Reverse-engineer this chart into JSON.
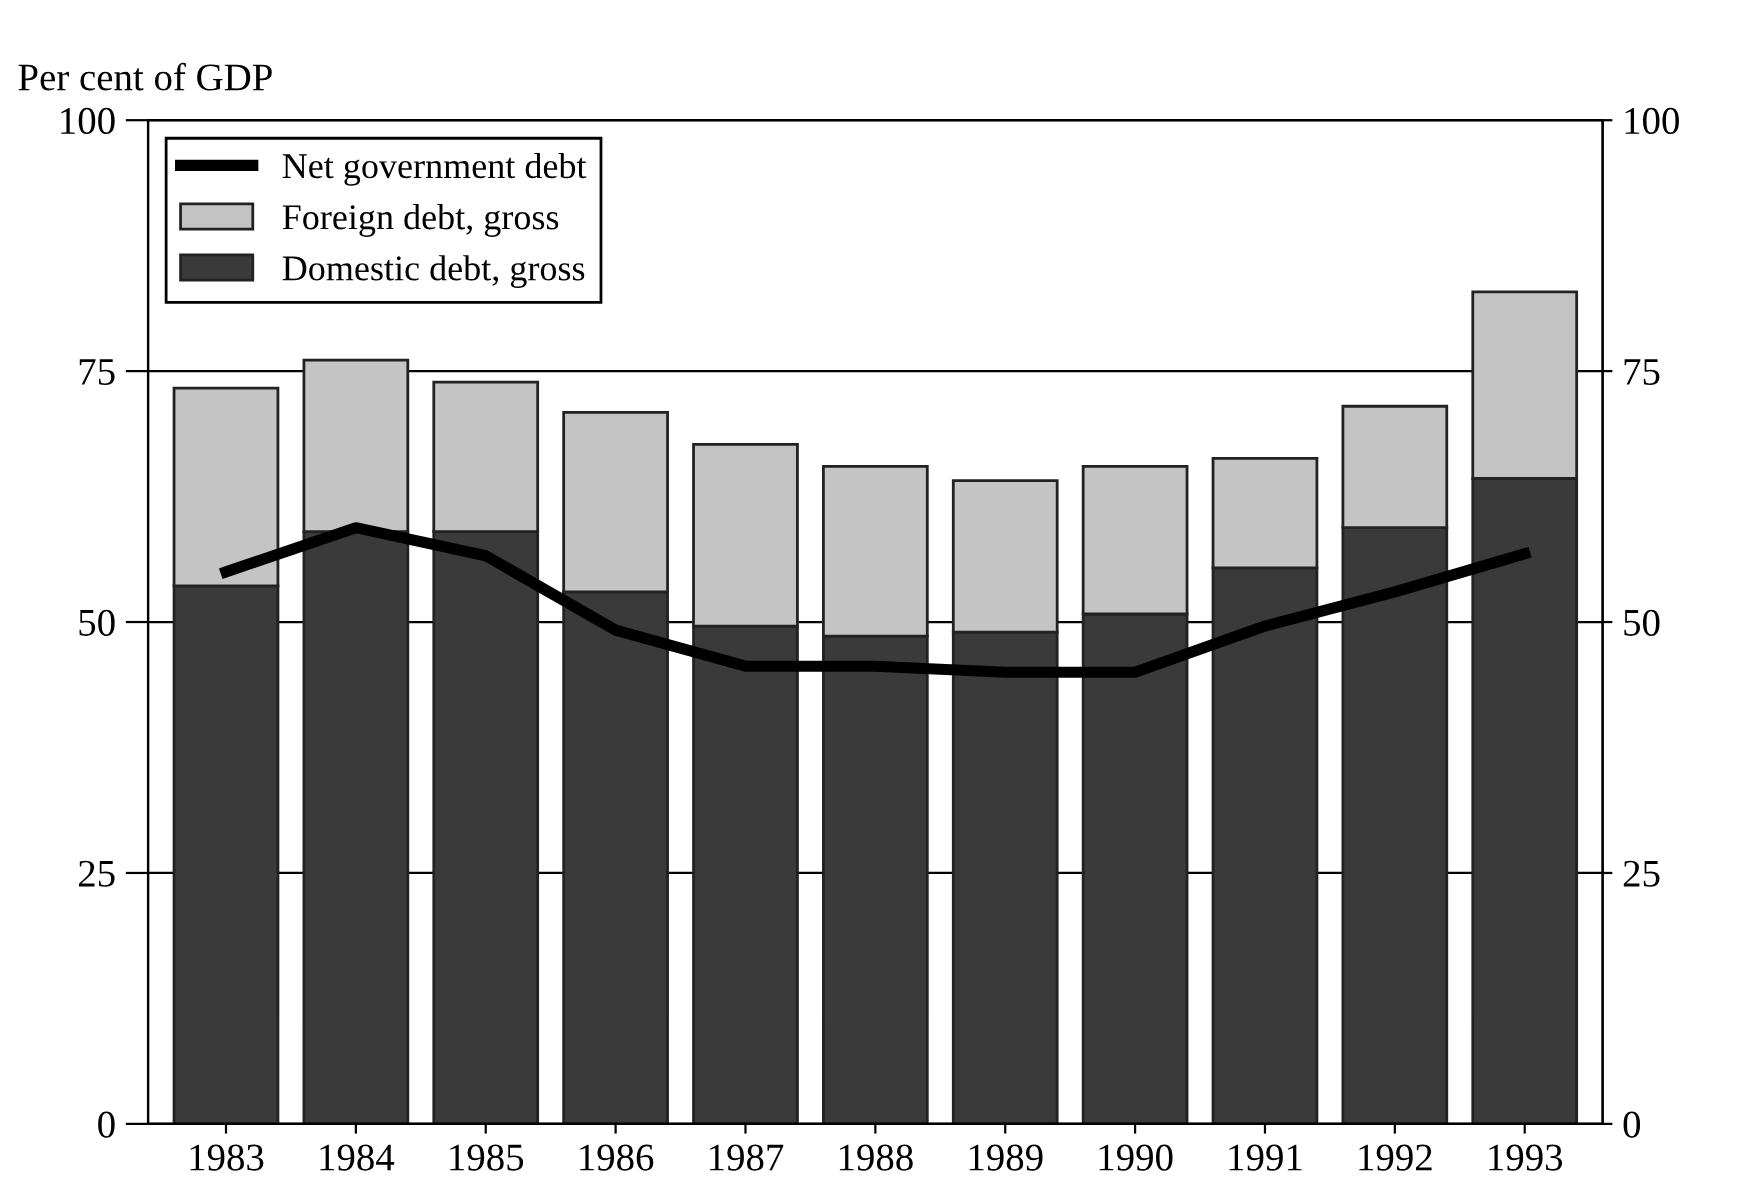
{
  "chart_data": {
    "type": "bar",
    "stacked": true,
    "ylabel": "Per cent of GDP",
    "categories": [
      "1983",
      "1984",
      "1985",
      "1986",
      "1987",
      "1988",
      "1989",
      "1990",
      "1991",
      "1992",
      "1993"
    ],
    "series": [
      {
        "name": "Domestic debt, gross",
        "color": "#3a3a3a",
        "values": [
          53.6,
          59.0,
          59.0,
          53.0,
          49.6,
          48.6,
          49.0,
          50.8,
          55.4,
          59.4,
          64.3
        ]
      },
      {
        "name": "Foreign debt, gross",
        "color": "#c4c4c4",
        "values": [
          19.7,
          17.1,
          14.9,
          17.9,
          18.1,
          16.9,
          15.1,
          14.7,
          10.9,
          12.1,
          18.6
        ]
      },
      {
        "name": "Net government debt",
        "type": "line",
        "color": "#000000",
        "values": [
          55.0,
          59.4,
          56.6,
          49.2,
          45.6,
          45.6,
          45.0,
          45.0,
          49.6,
          53.0,
          56.8
        ]
      }
    ],
    "ylim": [
      0,
      100
    ],
    "yticks": [
      0,
      25,
      50,
      75,
      100
    ],
    "y2lim": [
      0,
      100
    ],
    "y2ticks": [
      0,
      25,
      50,
      75,
      100
    ],
    "grid": "y",
    "legend": "top left"
  }
}
